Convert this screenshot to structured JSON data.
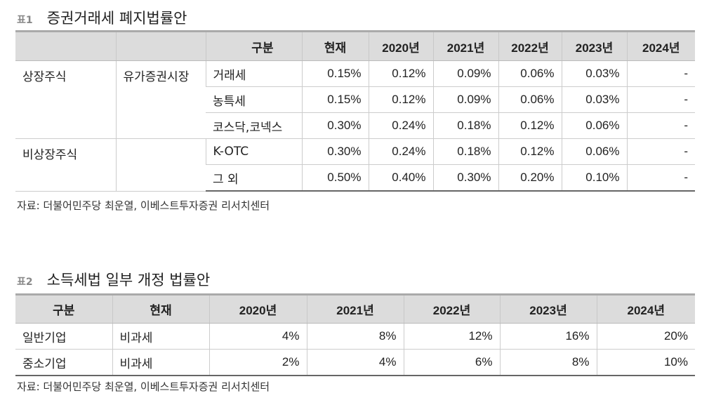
{
  "table1": {
    "tag": "표1",
    "title": "증권거래세 폐지법률안",
    "headers": [
      "",
      "",
      "구분",
      "현재",
      "2020년",
      "2021년",
      "2022년",
      "2023년",
      "2024년"
    ],
    "groups": [
      {
        "label": "상장주식",
        "sub": "유가증권시장",
        "rows": [
          {
            "name": "거래세",
            "values": [
              "0.15%",
              "0.12%",
              "0.09%",
              "0.06%",
              "0.03%",
              "-"
            ]
          },
          {
            "name": "농특세",
            "values": [
              "0.15%",
              "0.12%",
              "0.09%",
              "0.06%",
              "0.03%",
              "-"
            ]
          },
          {
            "name": "코스닥,코넥스",
            "values": [
              "0.30%",
              "0.24%",
              "0.18%",
              "0.12%",
              "0.06%",
              "-"
            ]
          }
        ]
      },
      {
        "label": "비상장주식",
        "sub": "",
        "rows": [
          {
            "name": "K-OTC",
            "values": [
              "0.30%",
              "0.24%",
              "0.18%",
              "0.12%",
              "0.06%",
              "-"
            ]
          },
          {
            "name": "그 외",
            "values": [
              "0.50%",
              "0.40%",
              "0.30%",
              "0.20%",
              "0.10%",
              "-"
            ]
          }
        ]
      }
    ],
    "source": "자료: 더불어민주당 최운열, 이베스트투자증권 리서치센터"
  },
  "table2": {
    "tag": "표2",
    "title": "소득세법 일부 개정 법률안",
    "headers": [
      "구분",
      "현재",
      "2020년",
      "2021년",
      "2022년",
      "2023년",
      "2024년"
    ],
    "rows": [
      {
        "name": "일반기업",
        "current": "비과세",
        "values": [
          "4%",
          "8%",
          "12%",
          "16%",
          "20%"
        ]
      },
      {
        "name": "중소기업",
        "current": "비과세",
        "values": [
          "2%",
          "4%",
          "6%",
          "8%",
          "10%"
        ]
      }
    ],
    "source": "자료: 더불어민주당 최운열, 이베스트투자증권 리서치센터"
  }
}
